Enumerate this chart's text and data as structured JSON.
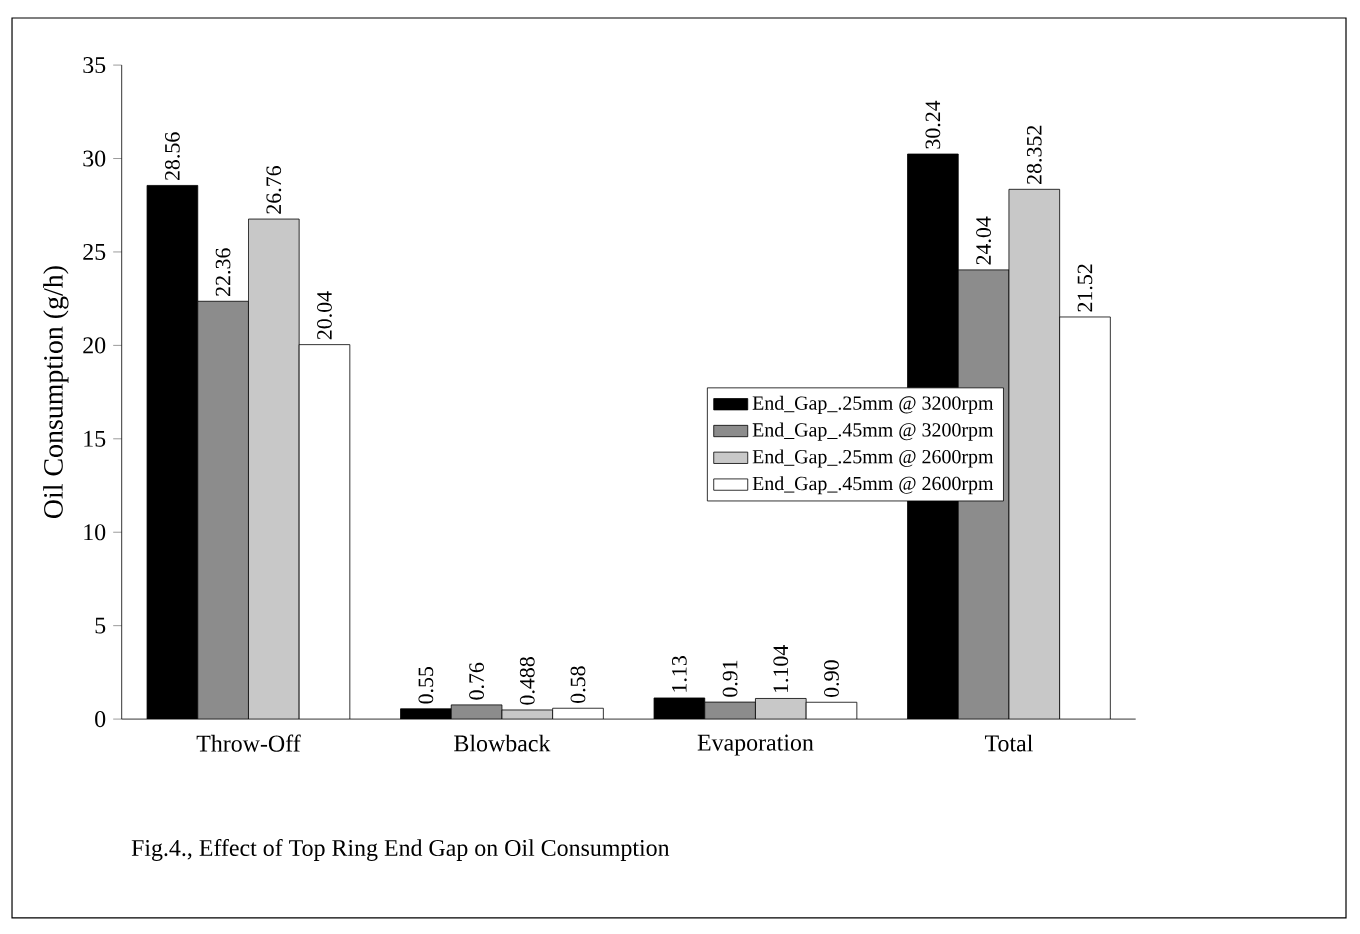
{
  "chart_data": {
    "type": "bar",
    "ylabel": "Oil Consumption (g/h)",
    "categories": [
      "Throw-Off",
      "Blowback",
      "Evaporation",
      "Total"
    ],
    "series": [
      {
        "name": "End_Gap_.25mm @ 3200rpm",
        "color": "#000000",
        "values": [
          28.56,
          0.55,
          1.13,
          30.24
        ],
        "value_labels": [
          "28.56",
          "0.55",
          "1.13",
          "30.24"
        ]
      },
      {
        "name": "End_Gap_.45mm @ 3200rpm",
        "color": "#8c8c8c",
        "values": [
          22.36,
          0.76,
          0.91,
          24.04
        ],
        "value_labels": [
          "22.36",
          "0.76",
          "0.91",
          "24.04"
        ]
      },
      {
        "name": "End_Gap_.25mm @ 2600rpm",
        "color": "#c8c8c8",
        "values": [
          26.76,
          0.488,
          1.104,
          28.352
        ],
        "value_labels": [
          "26.76",
          "0.488",
          "1.104",
          "28.352"
        ]
      },
      {
        "name": "End_Gap_.45mm @ 2600rpm",
        "color": "#ffffff",
        "values": [
          20.04,
          0.58,
          0.9,
          21.52
        ],
        "value_labels": [
          "20.04",
          "0.58",
          "0.90",
          "21.52"
        ]
      }
    ],
    "ylim": [
      0,
      35
    ],
    "yticks": [
      0,
      5,
      10,
      15,
      20,
      25,
      30,
      35
    ],
    "legend": "right",
    "annotations": [
      "Fig.4., Effect of Top Ring End Gap on Oil Consumption"
    ]
  }
}
